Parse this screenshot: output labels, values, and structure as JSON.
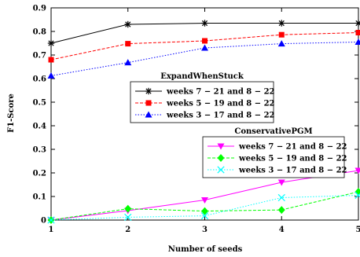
{
  "chart_data": {
    "type": "line",
    "xlabel": "Number of seeds",
    "ylabel": "F1-Score",
    "xlim": [
      1,
      5
    ],
    "ylim": [
      0,
      0.9
    ],
    "xticks": [
      "1",
      "2",
      "3",
      "4",
      "5"
    ],
    "yticks": [
      "0",
      "0.1",
      "0.2",
      "0.3",
      "0.4",
      "0.5",
      "0.6",
      "0.7",
      "0.8",
      "0.9"
    ],
    "x": [
      1,
      2,
      3,
      4,
      5
    ],
    "grid": false,
    "legends": [
      {
        "title": "ExpandWhenStuck",
        "placement": "center",
        "series": [
          {
            "name": "weeks 7 − 21 and 8 − 22",
            "color": "#000000",
            "marker": "star",
            "dash": "solid",
            "values": [
              0.75,
              0.83,
              0.835,
              0.835,
              0.835
            ]
          },
          {
            "name": "weeks 5 − 19 and 8 − 22",
            "color": "#ff0000",
            "marker": "square",
            "dash": "dashed",
            "values": [
              0.68,
              0.748,
              0.76,
              0.786,
              0.795
            ]
          },
          {
            "name": "weeks 3 − 17 and 8 − 22",
            "color": "#0000ff",
            "marker": "triangle-up",
            "dash": "dotted",
            "values": [
              0.612,
              0.668,
              0.73,
              0.748,
              0.755
            ]
          }
        ]
      },
      {
        "title": "ConservativePGM",
        "placement": "center-right",
        "series": [
          {
            "name": "weeks 7 − 21 and 8 − 22",
            "color": "#ff00ff",
            "marker": "triangle-down",
            "dash": "solid",
            "values": [
              0.0,
              0.04,
              0.085,
              0.16,
              0.21
            ]
          },
          {
            "name": "weeks 5 − 19 and 8 − 22",
            "color": "#00ff00",
            "marker": "diamond",
            "dash": "dashed",
            "values": [
              0.0,
              0.048,
              0.038,
              0.043,
              0.12
            ]
          },
          {
            "name": "weeks 3 − 17 and 8 − 22",
            "color": "#00ffff",
            "marker": "x",
            "dash": "dotted",
            "values": [
              0.0,
              0.012,
              0.018,
              0.095,
              0.105
            ]
          }
        ]
      }
    ]
  }
}
